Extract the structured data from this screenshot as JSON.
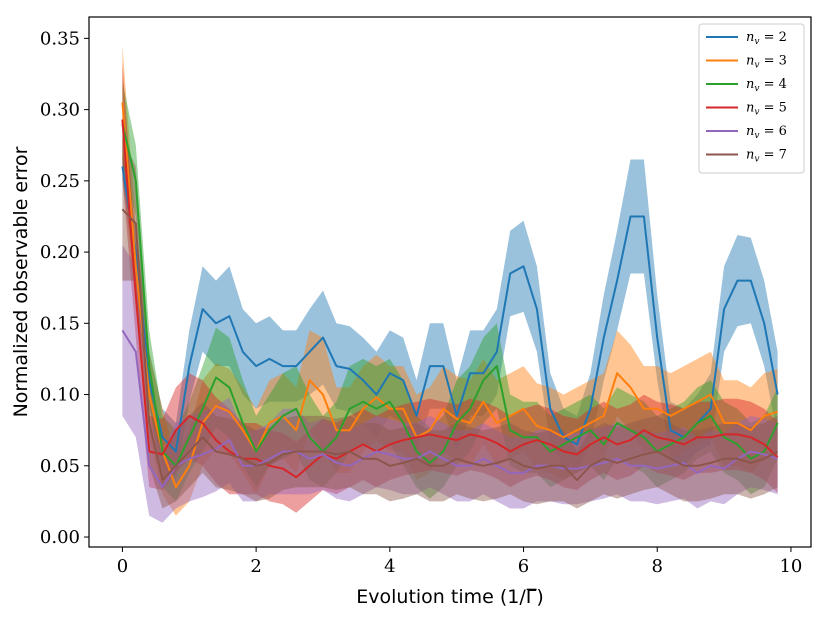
{
  "chart_data": {
    "type": "line",
    "title": "",
    "xlabel": "Evolution time (1/Γ̅)",
    "ylabel": "Normalized observable error",
    "xlim": [
      -0.5,
      10.3
    ],
    "ylim": [
      -0.007,
      0.365
    ],
    "xticks": [
      0,
      2,
      4,
      6,
      8,
      10
    ],
    "xtick_labels": [
      "0",
      "2",
      "4",
      "6",
      "8",
      "10"
    ],
    "yticks": [
      0.0,
      0.05,
      0.1,
      0.15,
      0.2,
      0.25,
      0.3,
      0.35
    ],
    "ytick_labels": [
      "0.00",
      "0.05",
      "0.10",
      "0.15",
      "0.20",
      "0.25",
      "0.30",
      "0.35"
    ],
    "grid": false,
    "legend_position": "top-right",
    "x": [
      0.0,
      0.2,
      0.4,
      0.6,
      0.8,
      1.0,
      1.2,
      1.4,
      1.6,
      1.8,
      2.0,
      2.2,
      2.4,
      2.6,
      2.8,
      3.0,
      3.2,
      3.4,
      3.6,
      3.8,
      4.0,
      4.2,
      4.4,
      4.6,
      4.8,
      5.0,
      5.2,
      5.4,
      5.6,
      5.8,
      6.0,
      6.2,
      6.4,
      6.6,
      6.8,
      7.0,
      7.2,
      7.4,
      7.6,
      7.8,
      8.0,
      8.2,
      8.4,
      8.6,
      8.8,
      9.0,
      9.2,
      9.4,
      9.6,
      9.8
    ],
    "series": [
      {
        "name": "n_v = 2",
        "legend_label": "n",
        "legend_sub": "v",
        "legend_value": " = 2",
        "color": "#1f77b4",
        "values": [
          0.26,
          0.2,
          0.11,
          0.07,
          0.06,
          0.12,
          0.16,
          0.15,
          0.155,
          0.13,
          0.12,
          0.125,
          0.12,
          0.12,
          0.13,
          0.14,
          0.12,
          0.118,
          0.11,
          0.1,
          0.115,
          0.11,
          0.085,
          0.12,
          0.12,
          0.085,
          0.115,
          0.115,
          0.13,
          0.185,
          0.19,
          0.16,
          0.09,
          0.07,
          0.065,
          0.09,
          0.14,
          0.18,
          0.225,
          0.225,
          0.14,
          0.075,
          0.07,
          0.08,
          0.09,
          0.16,
          0.18,
          0.18,
          0.15,
          0.1
        ],
        "err": [
          0.01,
          0.02,
          0.02,
          0.02,
          0.02,
          0.025,
          0.03,
          0.03,
          0.035,
          0.03,
          0.03,
          0.03,
          0.025,
          0.025,
          0.03,
          0.033,
          0.03,
          0.03,
          0.03,
          0.03,
          0.03,
          0.03,
          0.025,
          0.03,
          0.03,
          0.025,
          0.03,
          0.03,
          0.03,
          0.03,
          0.032,
          0.03,
          0.025,
          0.02,
          0.02,
          0.025,
          0.03,
          0.035,
          0.04,
          0.04,
          0.03,
          0.02,
          0.02,
          0.02,
          0.025,
          0.03,
          0.032,
          0.03,
          0.03,
          0.03
        ]
      },
      {
        "name": "n_v = 3",
        "legend_label": "n",
        "legend_sub": "v",
        "legend_value": " = 3",
        "color": "#ff7f0e",
        "values": [
          0.305,
          0.19,
          0.1,
          0.06,
          0.035,
          0.05,
          0.08,
          0.092,
          0.088,
          0.075,
          0.06,
          0.08,
          0.085,
          0.075,
          0.11,
          0.1,
          0.075,
          0.075,
          0.09,
          0.098,
          0.09,
          0.09,
          0.07,
          0.075,
          0.09,
          0.083,
          0.08,
          0.095,
          0.08,
          0.085,
          0.09,
          0.078,
          0.075,
          0.07,
          0.075,
          0.08,
          0.085,
          0.115,
          0.105,
          0.09,
          0.09,
          0.085,
          0.09,
          0.095,
          0.1,
          0.08,
          0.08,
          0.075,
          0.085,
          0.088
        ],
        "err": [
          0.04,
          0.03,
          0.03,
          0.03,
          0.02,
          0.025,
          0.03,
          0.03,
          0.03,
          0.03,
          0.03,
          0.03,
          0.03,
          0.03,
          0.035,
          0.04,
          0.03,
          0.03,
          0.03,
          0.03,
          0.03,
          0.03,
          0.03,
          0.03,
          0.03,
          0.03,
          0.03,
          0.03,
          0.03,
          0.03,
          0.03,
          0.03,
          0.03,
          0.03,
          0.03,
          0.03,
          0.03,
          0.03,
          0.03,
          0.03,
          0.03,
          0.03,
          0.03,
          0.03,
          0.03,
          0.03,
          0.03,
          0.03,
          0.03,
          0.03
        ]
      },
      {
        "name": "n_v = 4",
        "legend_label": "n",
        "legend_sub": "v",
        "legend_value": " = 4",
        "color": "#2ca02c",
        "values": [
          0.29,
          0.25,
          0.12,
          0.06,
          0.05,
          0.07,
          0.09,
          0.112,
          0.105,
          0.08,
          0.06,
          0.075,
          0.085,
          0.09,
          0.07,
          0.06,
          0.07,
          0.09,
          0.095,
          0.09,
          0.095,
          0.08,
          0.06,
          0.052,
          0.06,
          0.08,
          0.09,
          0.11,
          0.12,
          0.075,
          0.07,
          0.07,
          0.06,
          0.065,
          0.07,
          0.075,
          0.065,
          0.08,
          0.075,
          0.07,
          0.06,
          0.065,
          0.07,
          0.08,
          0.085,
          0.07,
          0.065,
          0.055,
          0.06,
          0.08
        ],
        "err": [
          0.03,
          0.025,
          0.025,
          0.025,
          0.025,
          0.025,
          0.03,
          0.035,
          0.035,
          0.03,
          0.025,
          0.025,
          0.03,
          0.03,
          0.03,
          0.025,
          0.025,
          0.03,
          0.03,
          0.03,
          0.03,
          0.03,
          0.025,
          0.025,
          0.025,
          0.03,
          0.03,
          0.03,
          0.03,
          0.025,
          0.025,
          0.025,
          0.025,
          0.025,
          0.025,
          0.025,
          0.025,
          0.025,
          0.025,
          0.025,
          0.025,
          0.025,
          0.025,
          0.025,
          0.025,
          0.025,
          0.025,
          0.025,
          0.025,
          0.025
        ]
      },
      {
        "name": "n_v = 5",
        "legend_label": "n",
        "legend_sub": "v",
        "legend_value": " = 5",
        "color": "#d62728",
        "values": [
          0.293,
          0.17,
          0.06,
          0.058,
          0.075,
          0.085,
          0.08,
          0.068,
          0.06,
          0.055,
          0.055,
          0.05,
          0.048,
          0.042,
          0.05,
          0.058,
          0.055,
          0.06,
          0.065,
          0.06,
          0.065,
          0.068,
          0.07,
          0.072,
          0.07,
          0.068,
          0.072,
          0.07,
          0.066,
          0.06,
          0.065,
          0.068,
          0.065,
          0.06,
          0.058,
          0.065,
          0.07,
          0.065,
          0.068,
          0.075,
          0.07,
          0.068,
          0.065,
          0.07,
          0.07,
          0.072,
          0.072,
          0.07,
          0.065,
          0.056
        ],
        "err": [
          0.04,
          0.03,
          0.025,
          0.025,
          0.03,
          0.03,
          0.03,
          0.03,
          0.03,
          0.025,
          0.025,
          0.025,
          0.025,
          0.025,
          0.025,
          0.025,
          0.025,
          0.025,
          0.025,
          0.025,
          0.025,
          0.025,
          0.025,
          0.025,
          0.025,
          0.025,
          0.025,
          0.025,
          0.025,
          0.025,
          0.025,
          0.025,
          0.025,
          0.025,
          0.025,
          0.025,
          0.025,
          0.025,
          0.025,
          0.025,
          0.025,
          0.025,
          0.025,
          0.025,
          0.025,
          0.025,
          0.025,
          0.025,
          0.025,
          0.025
        ]
      },
      {
        "name": "n_v = 6",
        "legend_label": "n",
        "legend_sub": "v",
        "legend_value": " = 6",
        "color": "#9467bd",
        "values": [
          0.145,
          0.13,
          0.05,
          0.035,
          0.05,
          0.055,
          0.058,
          0.062,
          0.068,
          0.05,
          0.05,
          0.055,
          0.06,
          0.06,
          0.055,
          0.058,
          0.052,
          0.05,
          0.055,
          0.06,
          0.058,
          0.055,
          0.055,
          0.06,
          0.055,
          0.05,
          0.05,
          0.055,
          0.05,
          0.045,
          0.045,
          0.05,
          0.05,
          0.048,
          0.048,
          0.05,
          0.052,
          0.055,
          0.05,
          0.05,
          0.048,
          0.05,
          0.052,
          0.045,
          0.05,
          0.048,
          0.055,
          0.06,
          0.058,
          0.055
        ],
        "err": [
          0.06,
          0.06,
          0.035,
          0.025,
          0.03,
          0.03,
          0.03,
          0.03,
          0.03,
          0.025,
          0.025,
          0.025,
          0.03,
          0.03,
          0.025,
          0.025,
          0.025,
          0.025,
          0.025,
          0.025,
          0.025,
          0.025,
          0.025,
          0.025,
          0.025,
          0.025,
          0.025,
          0.025,
          0.025,
          0.025,
          0.025,
          0.025,
          0.025,
          0.025,
          0.025,
          0.025,
          0.025,
          0.025,
          0.025,
          0.025,
          0.025,
          0.025,
          0.025,
          0.025,
          0.025,
          0.025,
          0.025,
          0.025,
          0.025,
          0.025
        ]
      },
      {
        "name": "n_v = 7",
        "legend_label": "n",
        "legend_sub": "v",
        "legend_value": " = 7",
        "color": "#8c564b",
        "values": [
          0.23,
          0.22,
          0.08,
          0.04,
          0.05,
          0.06,
          0.07,
          0.06,
          0.058,
          0.055,
          0.05,
          0.052,
          0.058,
          0.06,
          0.06,
          0.06,
          0.058,
          0.06,
          0.055,
          0.055,
          0.05,
          0.052,
          0.055,
          0.05,
          0.05,
          0.055,
          0.052,
          0.05,
          0.052,
          0.055,
          0.05,
          0.048,
          0.05,
          0.05,
          0.04,
          0.05,
          0.055,
          0.052,
          0.055,
          0.058,
          0.06,
          0.055,
          0.05,
          0.05,
          0.052,
          0.055,
          0.055,
          0.052,
          0.055,
          0.06
        ],
        "err": [
          0.05,
          0.04,
          0.03,
          0.02,
          0.025,
          0.025,
          0.025,
          0.025,
          0.025,
          0.025,
          0.025,
          0.025,
          0.025,
          0.025,
          0.025,
          0.025,
          0.025,
          0.025,
          0.025,
          0.025,
          0.025,
          0.025,
          0.025,
          0.025,
          0.025,
          0.025,
          0.025,
          0.025,
          0.025,
          0.025,
          0.025,
          0.025,
          0.025,
          0.025,
          0.02,
          0.025,
          0.025,
          0.025,
          0.025,
          0.025,
          0.025,
          0.025,
          0.025,
          0.025,
          0.025,
          0.025,
          0.025,
          0.025,
          0.025,
          0.025
        ]
      }
    ]
  }
}
